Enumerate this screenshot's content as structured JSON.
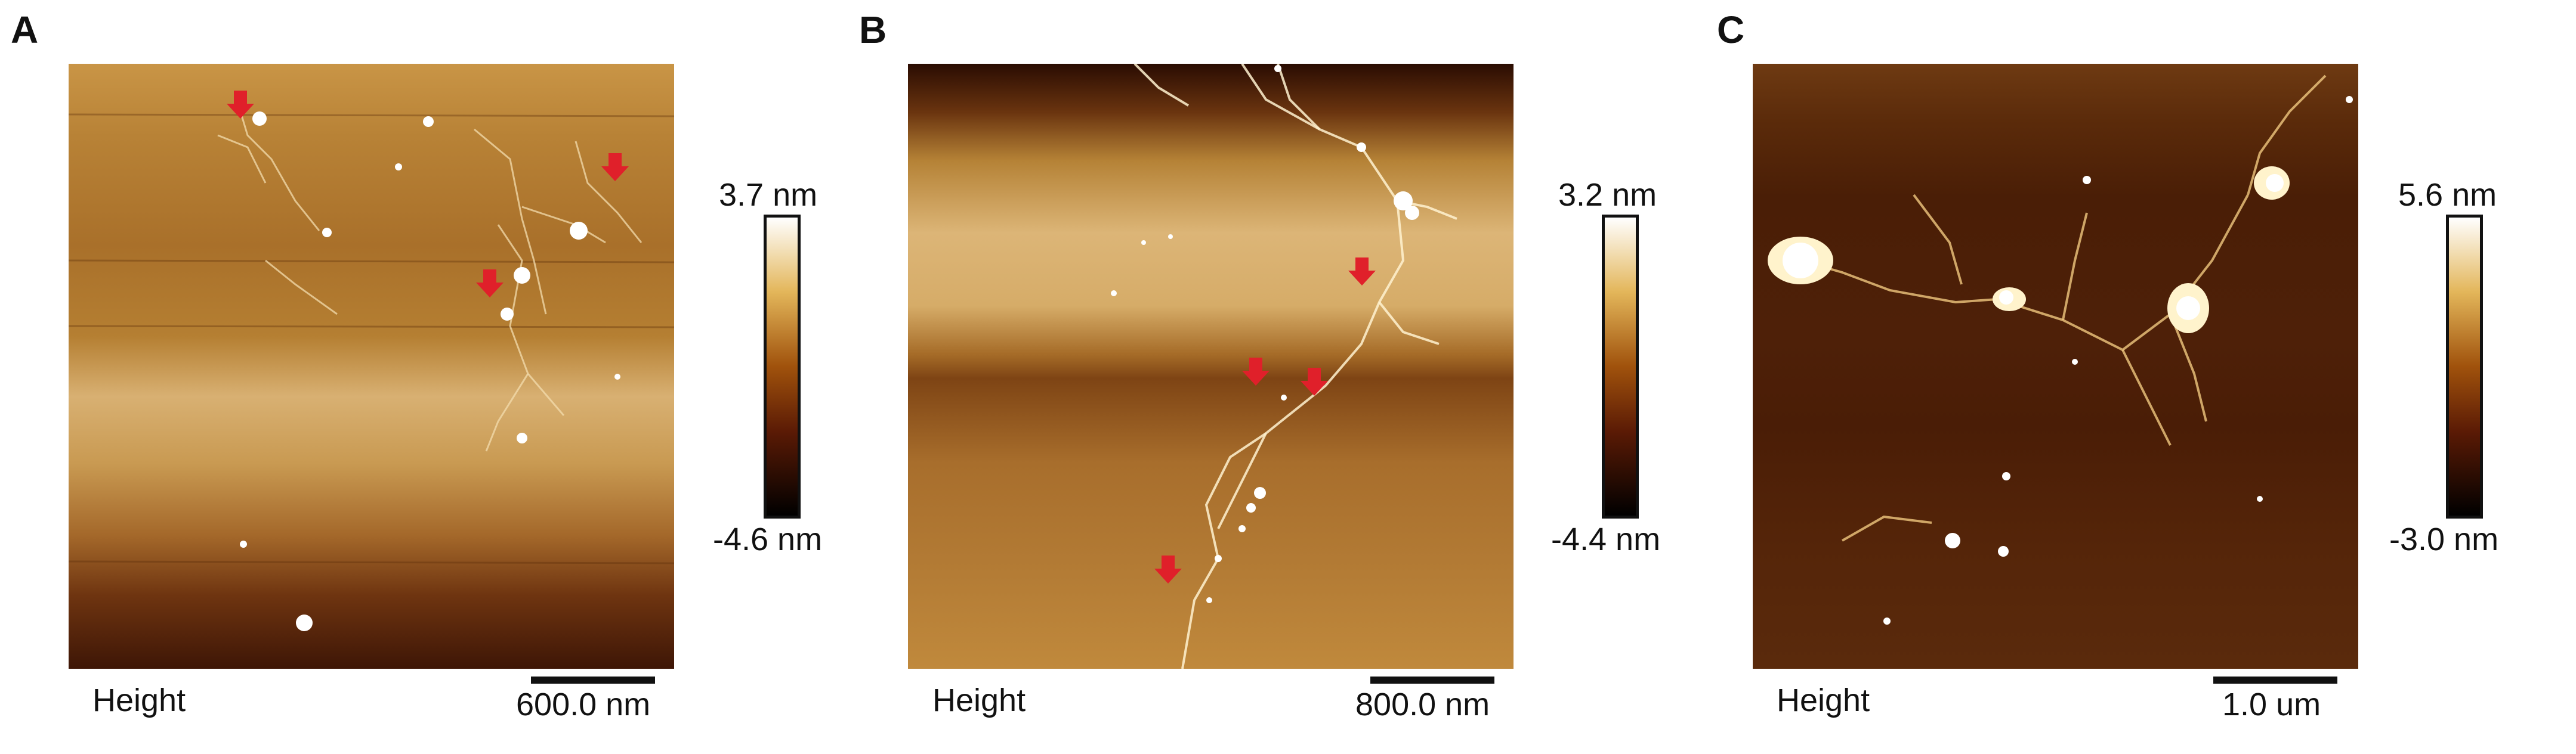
{
  "panels": [
    {
      "letter": "A",
      "image_label": "Height",
      "scale_bar": "600.0 nm",
      "colorbar_max": "3.7 nm",
      "colorbar_min": "-4.6 nm",
      "colormap": [
        "#000000",
        "#5a1a05",
        "#a0520c",
        "#e3b65a",
        "#ffffff"
      ],
      "arrow_color": "#e0202a",
      "arrow_count": 3
    },
    {
      "letter": "B",
      "image_label": "Height",
      "scale_bar": "800.0 nm",
      "colorbar_max": "3.2 nm",
      "colorbar_min": "-4.4 nm",
      "colormap": [
        "#000000",
        "#5a1a05",
        "#a0520c",
        "#e3b65a",
        "#ffffff"
      ],
      "arrow_color": "#e0202a",
      "arrow_count": 4
    },
    {
      "letter": "C",
      "image_label": "Height",
      "scale_bar": "1.0 um",
      "colorbar_max": "5.6 nm",
      "colorbar_min": "-3.0 nm",
      "colormap": [
        "#000000",
        "#5a1a05",
        "#a0520c",
        "#e3b65a",
        "#ffffff"
      ],
      "arrow_count": 0
    }
  ]
}
